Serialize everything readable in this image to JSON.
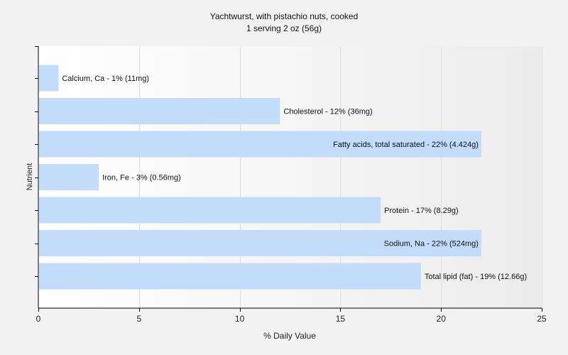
{
  "chart_data": {
    "type": "bar",
    "orientation": "horizontal",
    "title": "Yachtwurst, with pistachio nuts, cooked",
    "subtitle": "1 serving 2 oz (56g)",
    "xlabel": "% Daily Value",
    "ylabel": "Nutrient",
    "xlim": [
      0,
      25
    ],
    "xticks": [
      0,
      5,
      10,
      15,
      20,
      25
    ],
    "grid": true,
    "categories": [
      "Calcium, Ca",
      "Cholesterol",
      "Fatty acids, total saturated",
      "Iron, Fe",
      "Protein",
      "Sodium, Na",
      "Total lipid (fat)"
    ],
    "values": [
      1,
      12,
      22,
      3,
      17,
      22,
      19
    ],
    "labels": [
      "Calcium, Ca - 1% (11mg)",
      "Cholesterol - 12% (36mg)",
      "Fatty acids, total saturated - 22% (4.424g)",
      "Iron, Fe - 3% (0.56mg)",
      "Protein - 17% (8.29g)",
      "Sodium, Na - 22% (524mg)",
      "Total lipid (fat) - 19% (12.66g)"
    ],
    "colors": {
      "bar": "#c2dcfa",
      "axis": "#000000",
      "grid": "#dddddd"
    }
  }
}
